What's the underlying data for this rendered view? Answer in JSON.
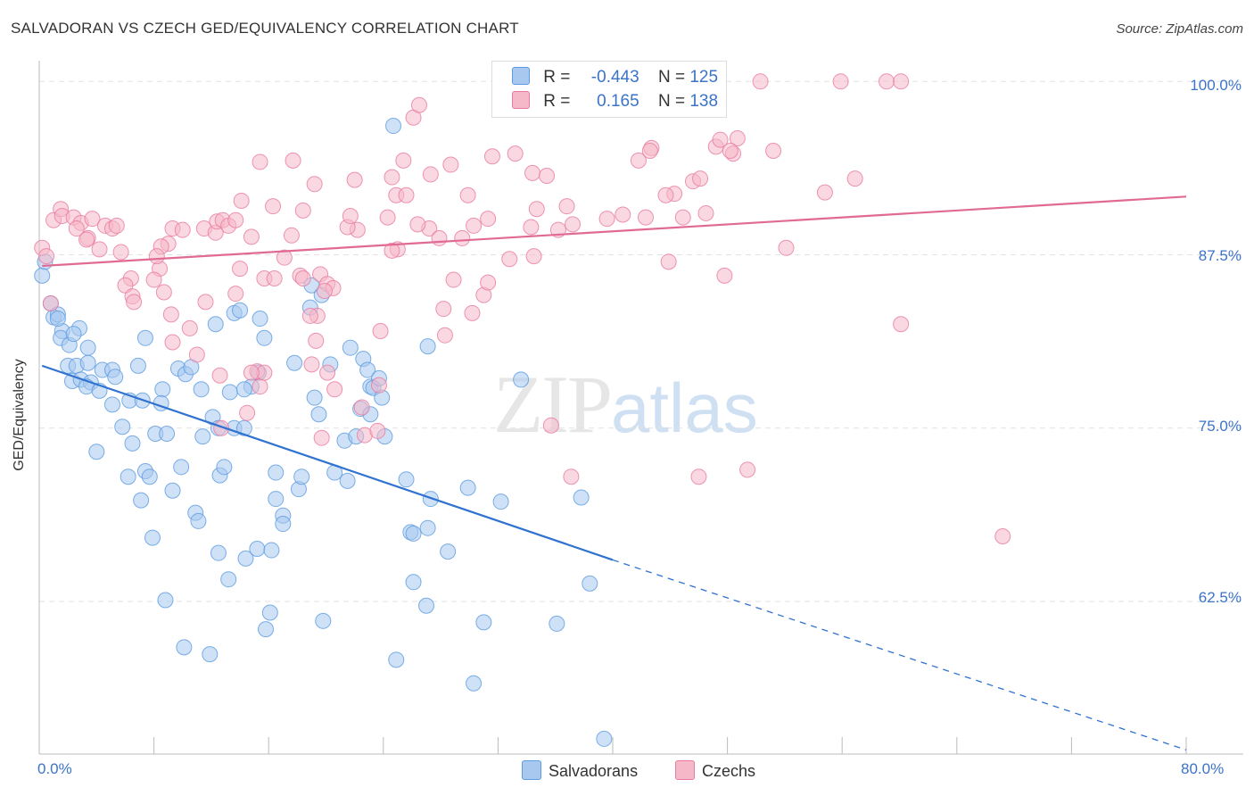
{
  "title": "SALVADORAN VS CZECH GED/EQUIVALENCY CORRELATION CHART",
  "source": "Source: ZipAtlas.com",
  "watermark": {
    "zip": "ZIP",
    "atlas": "atlas"
  },
  "legend": {
    "rows": [
      {
        "r_label": "R =",
        "r_value": "-0.443",
        "n_label": "N =",
        "n_value": "125",
        "color": "#a8c8f0"
      },
      {
        "r_label": "R =",
        "r_value": "0.165",
        "n_label": "N =",
        "n_value": "138",
        "color": "#f5b8c8"
      }
    ]
  },
  "bottom_legend": [
    {
      "label": "Salvadorans",
      "color": "#a8c8f0"
    },
    {
      "label": "Czechs",
      "color": "#f5b8c8"
    }
  ],
  "chart_data": {
    "type": "scatter",
    "title": "SALVADORAN VS CZECH GED/EQUIVALENCY CORRELATION CHART",
    "ylabel": "GED/Equivalency",
    "xlim": [
      0,
      80
    ],
    "ylim": [
      51.5,
      101.5
    ],
    "x_tick_labels": [
      "0.0%",
      "80.0%"
    ],
    "y_ticks": [
      62.5,
      75.0,
      87.5,
      100.0
    ],
    "y_tick_labels": [
      "62.5%",
      "75.0%",
      "87.5%",
      "100.0%"
    ],
    "grid": true,
    "series": [
      {
        "name": "Salvadorans",
        "color": "#5b9be0",
        "fill": "#a8c8f0",
        "trend": {
          "x0": 0.2,
          "y0": 79.5,
          "x1": 40,
          "y1": 65.5,
          "dash_x1": 80,
          "dash_y1": 51.8
        },
        "points": [
          [
            0.2,
            86
          ],
          [
            0.4,
            87
          ],
          [
            0.8,
            84
          ],
          [
            1,
            83
          ],
          [
            1.3,
            83.2
          ],
          [
            1.6,
            82
          ],
          [
            1.5,
            81.5
          ],
          [
            2.8,
            82.2
          ],
          [
            2.1,
            81
          ],
          [
            2,
            79.5
          ],
          [
            2.6,
            79.5
          ],
          [
            3.4,
            79.7
          ],
          [
            4.4,
            79.2
          ],
          [
            5.1,
            79.2
          ],
          [
            6.9,
            79.5
          ],
          [
            2.3,
            78.4
          ],
          [
            2.9,
            78.5
          ],
          [
            3.6,
            78.3
          ],
          [
            3.3,
            78
          ],
          [
            5.3,
            78.7
          ],
          [
            9.7,
            79.3
          ],
          [
            10.2,
            78.9
          ],
          [
            8.6,
            77.8
          ],
          [
            11.3,
            77.8
          ],
          [
            4.2,
            77.7
          ],
          [
            5.1,
            76.7
          ],
          [
            6.3,
            77
          ],
          [
            7.2,
            77
          ],
          [
            8.5,
            76.8
          ],
          [
            12.1,
            75.8
          ],
          [
            13.3,
            77.6
          ],
          [
            14.8,
            78
          ],
          [
            14.3,
            77.8
          ],
          [
            15.3,
            79
          ],
          [
            17.8,
            79.7
          ],
          [
            19.2,
            77.2
          ],
          [
            20.3,
            79.6
          ],
          [
            21.7,
            80.8
          ],
          [
            22.6,
            80
          ],
          [
            22.9,
            79.2
          ],
          [
            23.1,
            78
          ],
          [
            23.3,
            77.9
          ],
          [
            23.7,
            78.6
          ],
          [
            23.9,
            77.2
          ],
          [
            22.4,
            76.4
          ],
          [
            12.5,
            75
          ],
          [
            13.6,
            75
          ],
          [
            14.3,
            75
          ],
          [
            19.5,
            76
          ],
          [
            21.3,
            74.1
          ],
          [
            22.1,
            74.4
          ],
          [
            24.1,
            74.4
          ],
          [
            23.1,
            76
          ],
          [
            5.8,
            75.1
          ],
          [
            6.5,
            73.9
          ],
          [
            8.1,
            74.6
          ],
          [
            8.9,
            74.6
          ],
          [
            11.4,
            74.4
          ],
          [
            4,
            73.3
          ],
          [
            6.2,
            71.5
          ],
          [
            7.4,
            71.9
          ],
          [
            7.7,
            71.5
          ],
          [
            9.3,
            70.5
          ],
          [
            9.9,
            72.2
          ],
          [
            12.6,
            71.6
          ],
          [
            12.9,
            72.2
          ],
          [
            16.5,
            71.8
          ],
          [
            18.1,
            70.6
          ],
          [
            18.3,
            71.5
          ],
          [
            20.6,
            71.8
          ],
          [
            21.5,
            71.2
          ],
          [
            25.6,
            71.3
          ],
          [
            27.3,
            69.9
          ],
          [
            29.9,
            70.7
          ],
          [
            32.2,
            69.7
          ],
          [
            37.8,
            70
          ],
          [
            7.1,
            69.8
          ],
          [
            10.9,
            68.9
          ],
          [
            11.1,
            68.3
          ],
          [
            16.5,
            69.9
          ],
          [
            17,
            68.7
          ],
          [
            17,
            68.1
          ],
          [
            25.9,
            67.5
          ],
          [
            26.1,
            67.4
          ],
          [
            27.1,
            67.8
          ],
          [
            7.9,
            67.1
          ],
          [
            12.5,
            66
          ],
          [
            14.4,
            65.6
          ],
          [
            15.2,
            66.3
          ],
          [
            16.2,
            66.2
          ],
          [
            28.5,
            66.1
          ],
          [
            13.2,
            64.1
          ],
          [
            26.1,
            63.9
          ],
          [
            38.4,
            63.8
          ],
          [
            8.8,
            62.6
          ],
          [
            16.1,
            61.7
          ],
          [
            19.8,
            61.1
          ],
          [
            27,
            62.2
          ],
          [
            31,
            61
          ],
          [
            36.1,
            60.9
          ],
          [
            15.8,
            60.5
          ],
          [
            10.1,
            59.2
          ],
          [
            11.9,
            58.7
          ],
          [
            24.9,
            58.3
          ],
          [
            30.3,
            56.6
          ],
          [
            39.4,
            52.6
          ],
          [
            13.6,
            83.3
          ],
          [
            14,
            83.5
          ],
          [
            15.4,
            82.9
          ],
          [
            15.7,
            81.5
          ],
          [
            12.3,
            82.5
          ],
          [
            7.4,
            81.5
          ],
          [
            18.9,
            83.7
          ],
          [
            19,
            85.3
          ],
          [
            19.7,
            84.6
          ],
          [
            27.1,
            80.9
          ],
          [
            33.6,
            78.5
          ],
          [
            24.7,
            96.8
          ],
          [
            2.4,
            81.8
          ],
          [
            1.3,
            82.9
          ],
          [
            10.6,
            79.4
          ],
          [
            3.4,
            80.8
          ]
        ]
      },
      {
        "name": "Czechs",
        "color": "#e87aa0",
        "fill": "#f5b8c8",
        "trend": {
          "x0": 0.2,
          "y0": 86.7,
          "x1": 80,
          "y1": 91.7
        },
        "points": [
          [
            0.2,
            88
          ],
          [
            0.5,
            87.4
          ],
          [
            0.8,
            84
          ],
          [
            1,
            90
          ],
          [
            1.5,
            90.8
          ],
          [
            1.6,
            90.3
          ],
          [
            2.4,
            90.2
          ],
          [
            2.9,
            89.8
          ],
          [
            2.6,
            89.4
          ],
          [
            3.4,
            88.7
          ],
          [
            3.7,
            90.1
          ],
          [
            4.6,
            89.6
          ],
          [
            5.1,
            89.4
          ],
          [
            5.4,
            89.6
          ],
          [
            3.3,
            88.6
          ],
          [
            4.2,
            87.9
          ],
          [
            5.7,
            87.7
          ],
          [
            9.3,
            89.4
          ],
          [
            10,
            89.3
          ],
          [
            11.5,
            89.4
          ],
          [
            9,
            88.3
          ],
          [
            8.5,
            88.1
          ],
          [
            8.4,
            86.5
          ],
          [
            8.2,
            87.4
          ],
          [
            6.4,
            85.8
          ],
          [
            6,
            85.3
          ],
          [
            6.5,
            84.5
          ],
          [
            6.6,
            84.1
          ],
          [
            8.7,
            84.8
          ],
          [
            8,
            85.7
          ],
          [
            9.2,
            83.2
          ],
          [
            11.6,
            84.1
          ],
          [
            12.3,
            89.1
          ],
          [
            12.4,
            89.9
          ],
          [
            12.8,
            90
          ],
          [
            13.2,
            89.6
          ],
          [
            13.7,
            90
          ],
          [
            14.1,
            91.4
          ],
          [
            14.8,
            88.8
          ],
          [
            15.7,
            85.8
          ],
          [
            14,
            86.5
          ],
          [
            16.3,
            91
          ],
          [
            17.1,
            87.3
          ],
          [
            16.4,
            85.8
          ],
          [
            17.6,
            88.9
          ],
          [
            18.2,
            86
          ],
          [
            18.4,
            85.8
          ],
          [
            19.6,
            86.1
          ],
          [
            20.1,
            85.4
          ],
          [
            20.5,
            85.1
          ],
          [
            19.9,
            84.9
          ],
          [
            19.4,
            83.1
          ],
          [
            18.9,
            83.1
          ],
          [
            19,
            79.6
          ],
          [
            20.1,
            79
          ],
          [
            20.6,
            77.8
          ],
          [
            22.5,
            76.5
          ],
          [
            15.4,
            78
          ],
          [
            14.5,
            76.1
          ],
          [
            12.7,
            75
          ],
          [
            11,
            80.3
          ],
          [
            9.3,
            81.2
          ],
          [
            10.5,
            82.2
          ],
          [
            13.7,
            84.7
          ],
          [
            23.7,
            78.1
          ],
          [
            19.3,
            81.3
          ],
          [
            23.8,
            82
          ],
          [
            22.7,
            74.5
          ],
          [
            23.6,
            74.8
          ],
          [
            19.7,
            74.3
          ],
          [
            15.2,
            79.1
          ],
          [
            15.7,
            79
          ],
          [
            12.6,
            78.8
          ],
          [
            14.8,
            79
          ],
          [
            30.2,
            83.3
          ],
          [
            31,
            84.6
          ],
          [
            28.3,
            81.7
          ],
          [
            28.2,
            83.6
          ],
          [
            31.3,
            85.5
          ],
          [
            32.8,
            87.2
          ],
          [
            34.5,
            87.4
          ],
          [
            34.3,
            89.5
          ],
          [
            36.2,
            89.3
          ],
          [
            34.7,
            90.8
          ],
          [
            31.3,
            90.1
          ],
          [
            30.3,
            89.6
          ],
          [
            27.2,
            89.4
          ],
          [
            26.4,
            89.7
          ],
          [
            29.5,
            88.7
          ],
          [
            27.9,
            88.7
          ],
          [
            25,
            87.9
          ],
          [
            24.6,
            87.8
          ],
          [
            22.2,
            89.3
          ],
          [
            21.5,
            89.5
          ],
          [
            21.7,
            90.3
          ],
          [
            24.3,
            90.2
          ],
          [
            24.9,
            91.8
          ],
          [
            25.6,
            91.8
          ],
          [
            27.3,
            93.3
          ],
          [
            28.7,
            94
          ],
          [
            29.9,
            91.8
          ],
          [
            25.4,
            94.3
          ],
          [
            24.6,
            93.1
          ],
          [
            22,
            92.9
          ],
          [
            19.2,
            92.6
          ],
          [
            18.4,
            90.7
          ],
          [
            15.4,
            94.2
          ],
          [
            17.7,
            94.3
          ],
          [
            31.6,
            94.6
          ],
          [
            33.2,
            94.8
          ],
          [
            34.4,
            93.4
          ],
          [
            36.8,
            91
          ],
          [
            37.2,
            89.7
          ],
          [
            39.6,
            90.1
          ],
          [
            40.7,
            90.4
          ],
          [
            42.3,
            90.2
          ],
          [
            41.8,
            94.3
          ],
          [
            42.7,
            95.2
          ],
          [
            44.3,
            91.9
          ],
          [
            44.9,
            90.2
          ],
          [
            43.9,
            87
          ],
          [
            45.6,
            92.8
          ],
          [
            46.1,
            93
          ],
          [
            47.2,
            95.3
          ],
          [
            48.4,
            94.8
          ],
          [
            48.7,
            95.9
          ],
          [
            46.5,
            90.5
          ],
          [
            47.8,
            86
          ],
          [
            52.1,
            88
          ],
          [
            54.8,
            92
          ],
          [
            56.9,
            93
          ],
          [
            35.4,
            93.2
          ],
          [
            37.9,
            98.1
          ],
          [
            26.1,
            97.4
          ],
          [
            26.5,
            98.3
          ],
          [
            28.9,
            85.7
          ],
          [
            55.9,
            100
          ],
          [
            59.1,
            100
          ],
          [
            60.1,
            100
          ],
          [
            50.3,
            100
          ],
          [
            51.2,
            95
          ],
          [
            60.1,
            82.5
          ],
          [
            37.1,
            71.5
          ],
          [
            46,
            71.5
          ],
          [
            49.4,
            72
          ],
          [
            67.2,
            67.2
          ],
          [
            35.7,
            75.2
          ],
          [
            42.6,
            95
          ],
          [
            47.5,
            95.8
          ],
          [
            48.2,
            95
          ],
          [
            43.7,
            91.8
          ]
        ]
      }
    ]
  }
}
